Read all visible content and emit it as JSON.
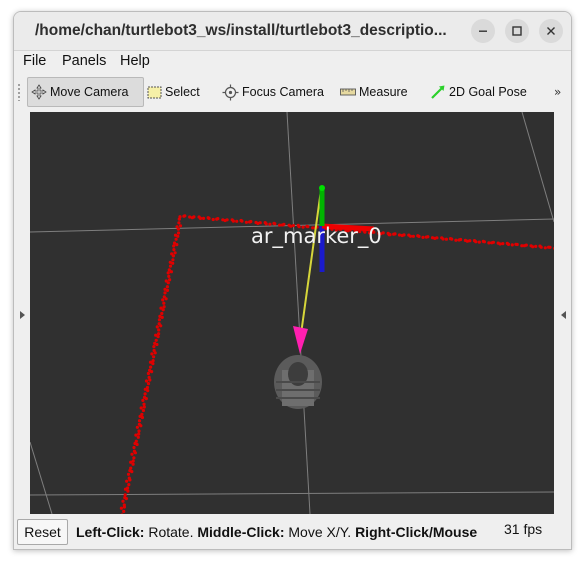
{
  "window": {
    "title": "/home/chan/turtlebot3_ws/install/turtlebot3_descriptio..."
  },
  "menu": {
    "file": "File",
    "panels": "Panels",
    "help": "Help"
  },
  "toolbar": {
    "move_camera": "Move Camera",
    "select": "Select",
    "focus_camera": "Focus Camera",
    "measure": "Measure",
    "goal_pose": "2D Goal Pose",
    "overflow": "»",
    "active_tool": "Move Camera"
  },
  "viewport": {
    "marker_label": "ar_marker_0",
    "background_color": "#303030",
    "laser_color": "#e00000",
    "grid_color": "#8c8c8c"
  },
  "statusbar": {
    "reset": "Reset",
    "left_click": "Left-Click:",
    "left_action": " Rotate. ",
    "middle_click": "Middle-Click:",
    "middle_action": " Move X/Y. ",
    "right_click": "Right-Click/Mouse",
    "fps": "31 fps"
  }
}
